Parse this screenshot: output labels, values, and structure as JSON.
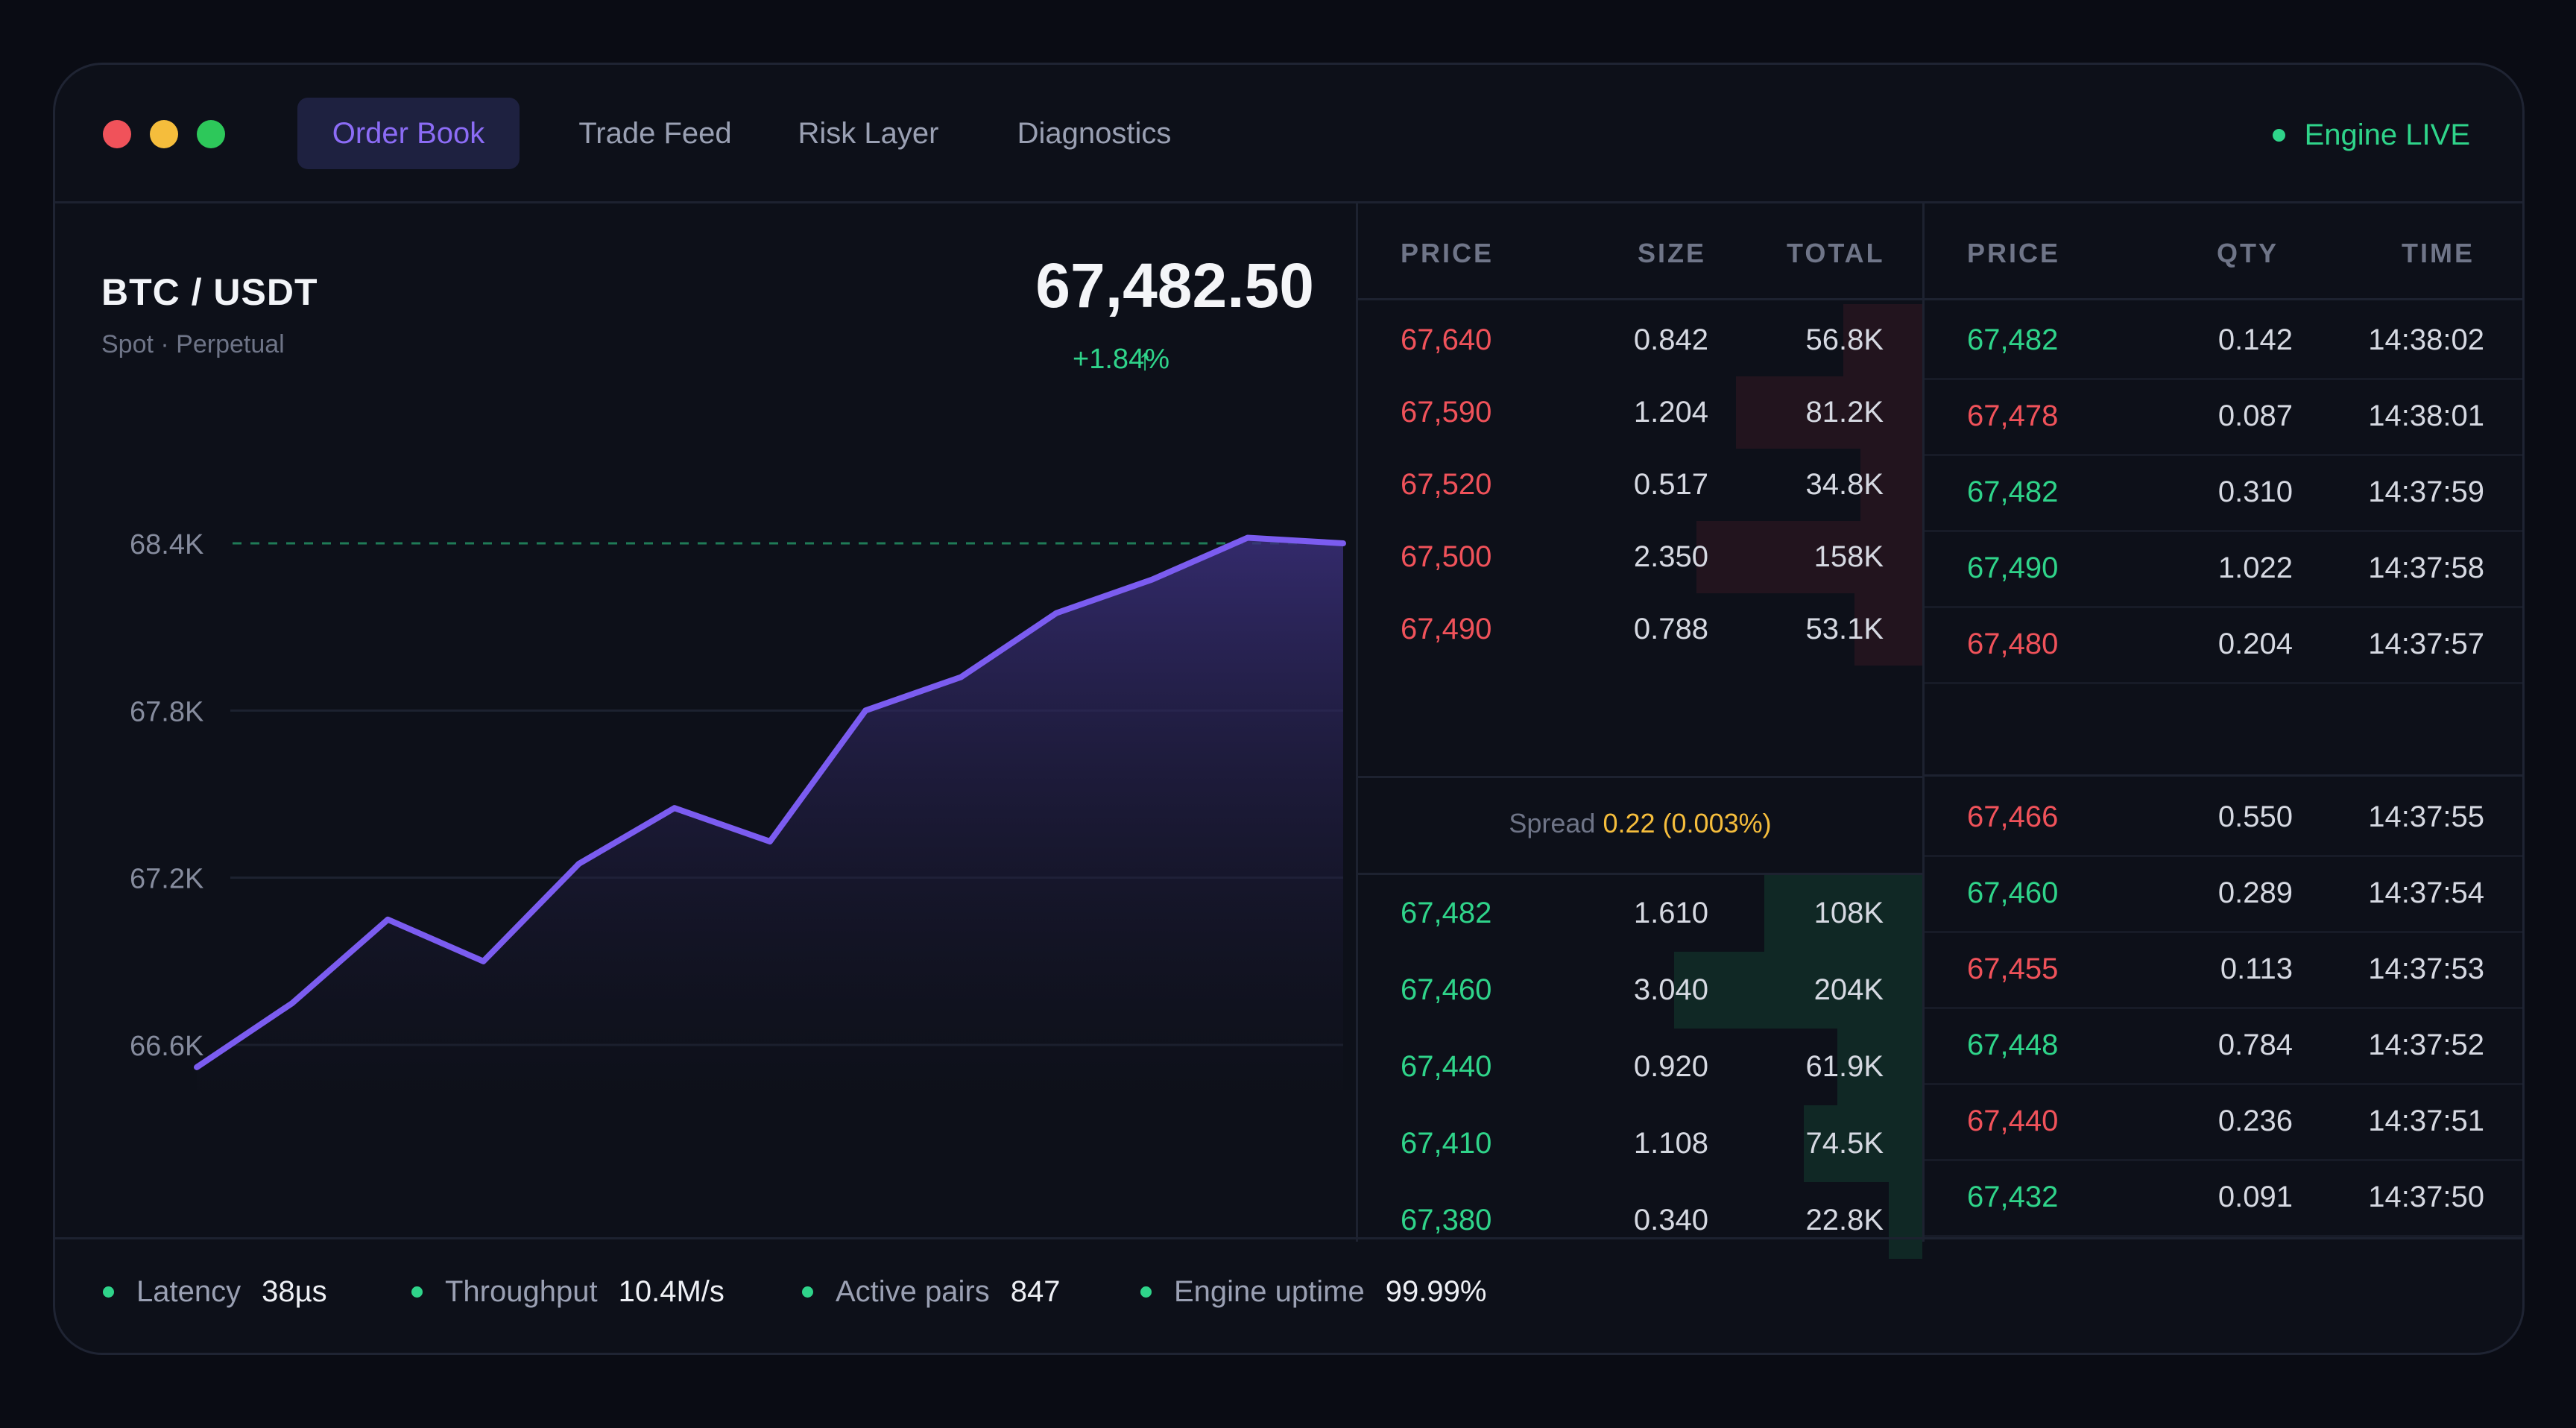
{
  "tabs": [
    {
      "label": "Order Book",
      "active": true
    },
    {
      "label": "Trade Feed",
      "active": false
    },
    {
      "label": "Risk Layer",
      "active": false
    },
    {
      "label": "Diagnostics",
      "active": false
    }
  ],
  "engine_status": "Engine LIVE",
  "market": {
    "pair": "BTC / USDT",
    "subtitle": "Spot · Perpetual",
    "price": "67,482.50",
    "change": "+1.84%",
    "change_icon": "arrow-up-icon"
  },
  "chart_data": {
    "type": "area",
    "y_tick_labels": [
      "68.4K",
      "67.8K",
      "67.2K",
      "66.6K"
    ],
    "ylim": [
      66600,
      68400
    ],
    "y_ticks": [
      68400,
      67800,
      67200,
      66600
    ],
    "values": [
      66520,
      66750,
      67050,
      66900,
      67250,
      67450,
      67330,
      67800,
      67920,
      68150,
      68270,
      68420,
      68400
    ],
    "reference_line": 68400,
    "grid": true,
    "colors": {
      "line": "#7b5cf0",
      "fill_top": "#3a2f7a",
      "reference": "#2fd48a"
    }
  },
  "order_book": {
    "headers": [
      "PRICE",
      "SIZE",
      "TOTAL"
    ],
    "asks": [
      {
        "price": "67,640",
        "size": "0.842",
        "total": "56.8K",
        "depth": 0.14
      },
      {
        "price": "67,590",
        "size": "1.204",
        "total": "81.2K",
        "depth": 0.33
      },
      {
        "price": "67,520",
        "size": "0.517",
        "total": "34.8K",
        "depth": 0.11
      },
      {
        "price": "67,500",
        "size": "2.350",
        "total": "158K",
        "depth": 0.4
      },
      {
        "price": "67,490",
        "size": "0.788",
        "total": "53.1K",
        "depth": 0.12
      }
    ],
    "spread_label": "Spread",
    "spread_value": "0.22 (0.003%)",
    "bids": [
      {
        "price": "67,482",
        "size": "1.610",
        "total": "108K",
        "depth": 0.28
      },
      {
        "price": "67,460",
        "size": "3.040",
        "total": "204K",
        "depth": 0.44
      },
      {
        "price": "67,440",
        "size": "0.920",
        "total": "61.9K",
        "depth": 0.15
      },
      {
        "price": "67,410",
        "size": "1.108",
        "total": "74.5K",
        "depth": 0.21
      },
      {
        "price": "67,380",
        "size": "0.340",
        "total": "22.8K",
        "depth": 0.06
      }
    ],
    "colors": {
      "ask": "#f0525a",
      "bid": "#2fd48a"
    }
  },
  "trade_feed": {
    "headers": [
      "PRICE",
      "QTY",
      "TIME"
    ],
    "trades": [
      {
        "price": "67,482",
        "qty": "0.142",
        "time": "14:38:02",
        "side": "buy"
      },
      {
        "price": "67,478",
        "qty": "0.087",
        "time": "14:38:01",
        "side": "sell"
      },
      {
        "price": "67,482",
        "qty": "0.310",
        "time": "14:37:59",
        "side": "buy"
      },
      {
        "price": "67,490",
        "qty": "1.022",
        "time": "14:37:58",
        "side": "buy"
      },
      {
        "price": "67,480",
        "qty": "0.204",
        "time": "14:37:57",
        "side": "sell"
      },
      {
        "price": "67,466",
        "qty": "0.550",
        "time": "14:37:55",
        "side": "sell"
      },
      {
        "price": "67,460",
        "qty": "0.289",
        "time": "14:37:54",
        "side": "buy"
      },
      {
        "price": "67,455",
        "qty": "0.113",
        "time": "14:37:53",
        "side": "sell"
      },
      {
        "price": "67,448",
        "qty": "0.784",
        "time": "14:37:52",
        "side": "buy"
      },
      {
        "price": "67,440",
        "qty": "0.236",
        "time": "14:37:51",
        "side": "sell"
      },
      {
        "price": "67,432",
        "qty": "0.091",
        "time": "14:37:50",
        "side": "buy"
      }
    ]
  },
  "footer": [
    {
      "label": "Latency",
      "value": "38µs"
    },
    {
      "label": "Throughput",
      "value": "10.4M/s"
    },
    {
      "label": "Active pairs",
      "value": "847"
    },
    {
      "label": "Engine uptime",
      "value": "99.99%"
    }
  ]
}
